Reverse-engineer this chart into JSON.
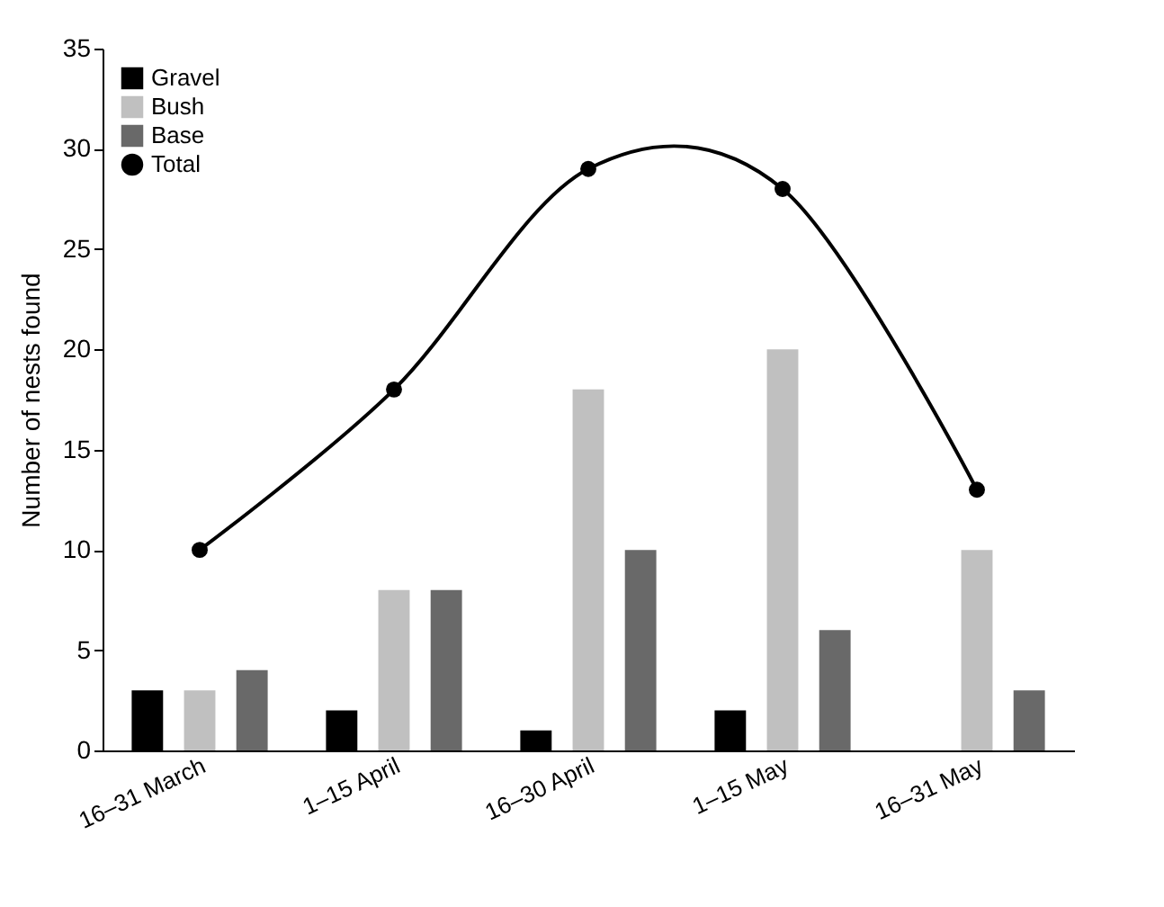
{
  "chart_data": {
    "type": "bar",
    "ylabel": "Number of nests found",
    "categories": [
      "16–31 March",
      "1–15 April",
      "16–30 April",
      "1–15 May",
      "16–31 May"
    ],
    "series": [
      {
        "name": "Gravel",
        "color": "#000000",
        "values": [
          3,
          2,
          1,
          2,
          0
        ]
      },
      {
        "name": "Bush",
        "color": "#c0c0c0",
        "values": [
          3,
          8,
          18,
          20,
          10
        ]
      },
      {
        "name": "Base",
        "color": "#696969",
        "values": [
          4,
          8,
          10,
          6,
          3
        ]
      },
      {
        "name": "Total",
        "type": "line",
        "color": "#000000",
        "values": [
          10,
          18,
          29,
          28,
          13
        ]
      }
    ],
    "ylim": [
      0,
      35
    ],
    "yticks": [
      0,
      5,
      10,
      15,
      20,
      25,
      30,
      35
    ],
    "grid": false,
    "legend": "top left",
    "marker": "circle",
    "line_style": "solid"
  }
}
